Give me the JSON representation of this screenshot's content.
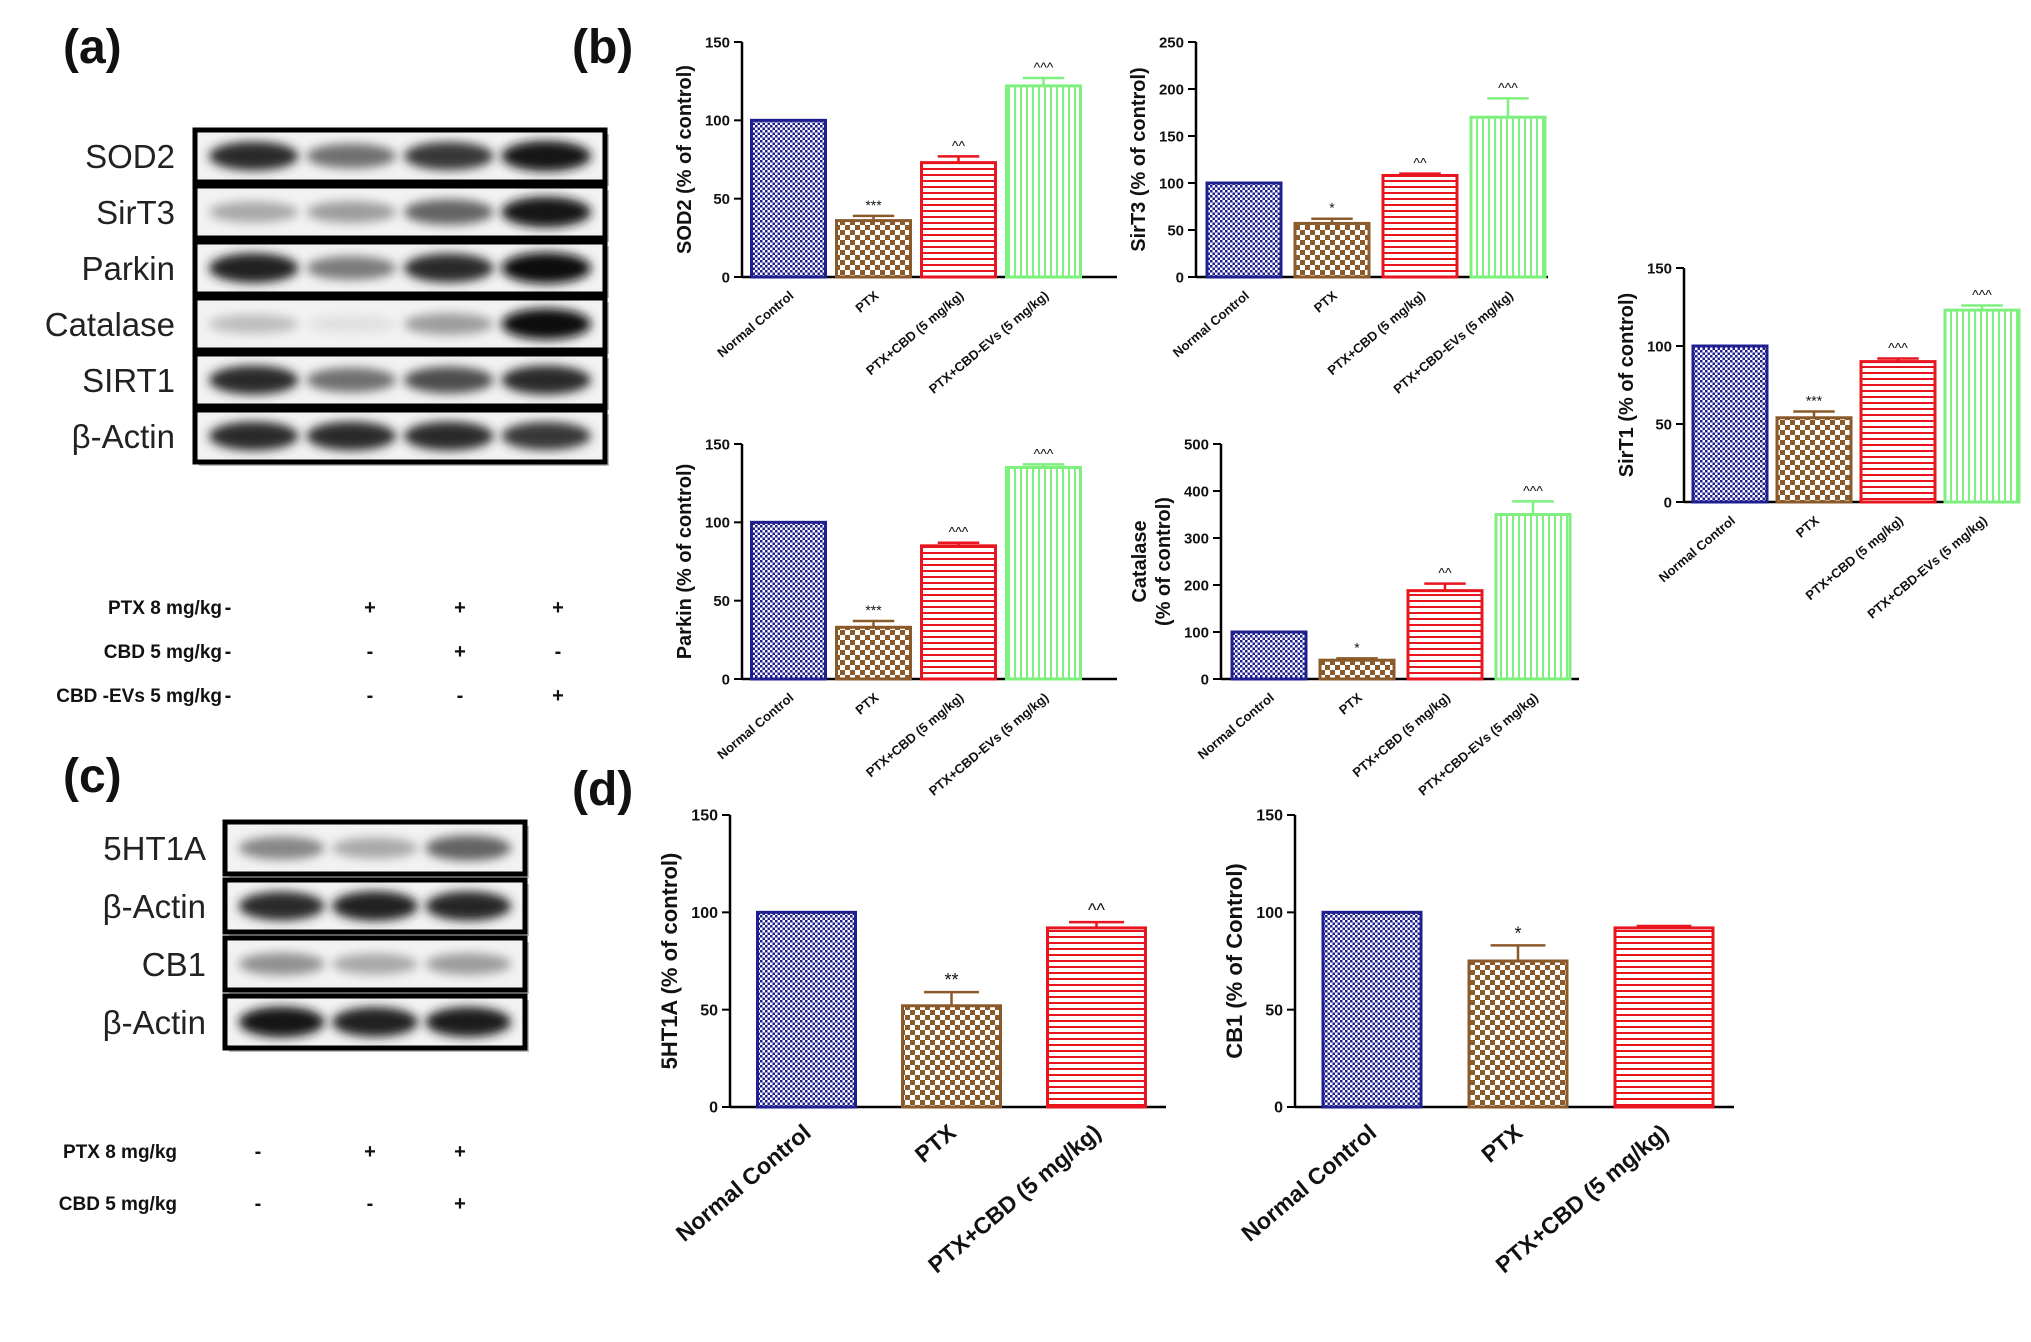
{
  "panels": {
    "a": "(a)",
    "b": "(b)",
    "c": "(c)",
    "d": "(d)"
  },
  "blots_a": {
    "rows": [
      "SOD2",
      "SirT3",
      "Parkin",
      "Catalase",
      "SIRT1",
      "β-Actin"
    ],
    "conditions": [
      {
        "label": "PTX  8 mg/kg",
        "signs": [
          "-",
          "+",
          "+",
          "+"
        ]
      },
      {
        "label": "CBD  5 mg/kg",
        "signs": [
          "-",
          "-",
          "+",
          "-"
        ]
      },
      {
        "label": "CBD -EVs  5 mg/kg",
        "signs": [
          "-",
          "-",
          "-",
          "+"
        ]
      }
    ],
    "band_intensity": [
      [
        0.85,
        0.55,
        0.8,
        0.95
      ],
      [
        0.3,
        0.35,
        0.6,
        0.95
      ],
      [
        0.9,
        0.5,
        0.85,
        1.0
      ],
      [
        0.2,
        0.05,
        0.35,
        1.0
      ],
      [
        0.85,
        0.55,
        0.7,
        0.85
      ],
      [
        0.85,
        0.85,
        0.85,
        0.8
      ]
    ]
  },
  "blots_c": {
    "rows": [
      "5HT1A",
      "β-Actin",
      "CB1",
      "β-Actin"
    ],
    "conditions": [
      {
        "label": "PTX  8 mg/kg",
        "signs": [
          "-",
          "+",
          "+"
        ]
      },
      {
        "label": "CBD  5 mg/kg",
        "signs": [
          "-",
          "-",
          "+"
        ]
      }
    ],
    "band_intensity": [
      [
        0.45,
        0.3,
        0.6
      ],
      [
        0.85,
        0.9,
        0.88
      ],
      [
        0.4,
        0.3,
        0.35
      ],
      [
        0.95,
        0.9,
        0.92
      ]
    ]
  },
  "colors": {
    "normal_control": "#1f1f8f",
    "ptx": "#8b5a2b",
    "ptx_cbd": "#e8141e",
    "ptx_cbd_evs": "#7ef07e"
  },
  "chart_data": [
    {
      "id": "sod2",
      "type": "bar",
      "ylabel": "SOD2 (% of control)",
      "categories": [
        "Normal Control",
        "PTX",
        "PTX+CBD (5 mg/kg)",
        "PTX+CBD-EVs (5 mg/kg)"
      ],
      "values": [
        100,
        36,
        73,
        122
      ],
      "errors": [
        0,
        3,
        4,
        5
      ],
      "annotations": [
        "",
        "***",
        "^^",
        "^^^"
      ],
      "ylim": [
        0,
        150
      ],
      "yticks": [
        0,
        50,
        100,
        150
      ]
    },
    {
      "id": "sirt3",
      "type": "bar",
      "ylabel": "SirT3 (% of control)",
      "categories": [
        "Normal Control",
        "PTX",
        "PTX+CBD (5 mg/kg)",
        "PTX+CBD-EVs (5 mg/kg)"
      ],
      "values": [
        100,
        57,
        108,
        170
      ],
      "errors": [
        0,
        5,
        2,
        20
      ],
      "annotations": [
        "",
        "*",
        "^^",
        "^^^"
      ],
      "ylim": [
        0,
        250
      ],
      "yticks": [
        0,
        50,
        100,
        150,
        200,
        250
      ]
    },
    {
      "id": "sirt1",
      "type": "bar",
      "ylabel": "SirT1 (% of control)",
      "categories": [
        "Normal Control",
        "PTX",
        "PTX+CBD (5 mg/kg)",
        "PTX+CBD-EVs (5 mg/kg)"
      ],
      "values": [
        100,
        54,
        90,
        123
      ],
      "errors": [
        0,
        4,
        2,
        3
      ],
      "annotations": [
        "",
        "***",
        "^^^",
        "^^^"
      ],
      "ylim": [
        0,
        150
      ],
      "yticks": [
        0,
        50,
        100,
        150
      ]
    },
    {
      "id": "parkin",
      "type": "bar",
      "ylabel": "Parkin (% of control)",
      "categories": [
        "Normal Control",
        "PTX",
        "PTX+CBD (5 mg/kg)",
        "PTX+CBD-EVs (5 mg/kg)"
      ],
      "values": [
        100,
        33,
        85,
        135
      ],
      "errors": [
        0,
        4,
        2,
        2
      ],
      "annotations": [
        "",
        "***",
        "^^^",
        "^^^"
      ],
      "ylim": [
        0,
        150
      ],
      "yticks": [
        0,
        50,
        100,
        150
      ]
    },
    {
      "id": "catalase",
      "type": "bar",
      "ylabel": "Catalase",
      "ylabel2": "(% of control)",
      "categories": [
        "Normal Control",
        "PTX",
        "PTX+CBD (5 mg/kg)",
        "PTX+CBD-EVs (5 mg/kg)"
      ],
      "values": [
        100,
        40,
        188,
        350
      ],
      "errors": [
        0,
        4,
        15,
        28
      ],
      "annotations": [
        "",
        "*",
        "^^",
        "^^^"
      ],
      "ylim": [
        0,
        500
      ],
      "yticks": [
        0,
        100,
        200,
        300,
        400,
        500
      ]
    },
    {
      "id": "5ht1a",
      "type": "bar",
      "ylabel": "5HT1A (% of control)",
      "categories": [
        "Normal Control",
        "PTX",
        "PTX+CBD (5 mg/kg)"
      ],
      "values": [
        100,
        52,
        92
      ],
      "errors": [
        0,
        7,
        3
      ],
      "annotations": [
        "",
        "**",
        "^^"
      ],
      "ylim": [
        0,
        150
      ],
      "yticks": [
        0,
        50,
        100,
        150
      ]
    },
    {
      "id": "cb1",
      "type": "bar",
      "ylabel": "CB1 (% of Control)",
      "categories": [
        "Normal Control",
        "PTX",
        "PTX+CBD (5 mg/kg)"
      ],
      "values": [
        100,
        75,
        92
      ],
      "errors": [
        0,
        8,
        1
      ],
      "annotations": [
        "",
        "*",
        ""
      ],
      "ylim": [
        0,
        150
      ],
      "yticks": [
        0,
        50,
        100,
        150
      ]
    }
  ]
}
